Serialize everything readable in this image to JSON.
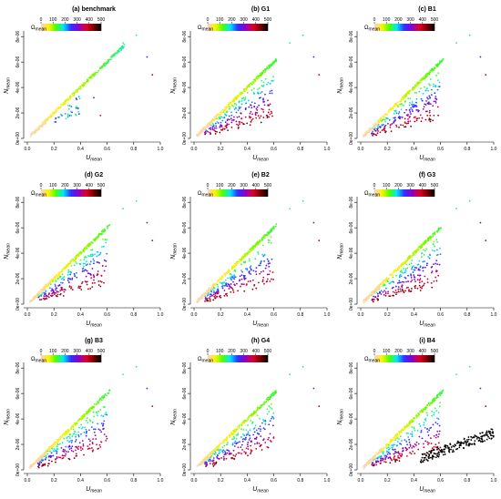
{
  "chart_data": {
    "type": "scatter",
    "layout": "3x3 small multiples",
    "xlabel": "U",
    "xlabel_subscript": "mean",
    "ylabel": "N",
    "ylabel_subscript": "mean",
    "x_ticks": [
      "0.0",
      "0.2",
      "0.4",
      "0.6",
      "0.8",
      "1.0"
    ],
    "y_ticks": [
      "0e+00",
      "2e-06",
      "4e-06",
      "6e-06",
      "8e-06"
    ],
    "xlim": [
      0.0,
      1.0
    ],
    "ylim": [
      0,
      8.3e-06
    ],
    "colorbar": {
      "label": "Ω",
      "label_subscript": "mean",
      "ticks": [
        "0",
        "100",
        "200",
        "300",
        "400",
        "500"
      ],
      "range": [
        0,
        500
      ],
      "stops": [
        "#f9d2c9",
        "#fff200",
        "#4cff00",
        "#00e5ff",
        "#2f2fff",
        "#8a00c8",
        "#e0002a",
        "#7a0000",
        "#000000"
      ]
    },
    "panels": [
      {
        "title": "(a) benchmark",
        "variant": "benchmark"
      },
      {
        "title": "(b) G1",
        "variant": "G"
      },
      {
        "title": "(c) B1",
        "variant": "B"
      },
      {
        "title": "(d) G2",
        "variant": "G"
      },
      {
        "title": "(e) B2",
        "variant": "B"
      },
      {
        "title": "(f) G3",
        "variant": "G"
      },
      {
        "title": "(g) B3",
        "variant": "B"
      },
      {
        "title": "(h) G4",
        "variant": "G"
      },
      {
        "title": "(i) B4",
        "variant": "B4"
      }
    ],
    "common_points": [
      {
        "x": 0.72,
        "y": 7.5e-06,
        "omega": 150
      },
      {
        "x": 0.82,
        "y": 8.1e-06,
        "omega": 170
      },
      {
        "x": 0.9,
        "y": 6.4e-06,
        "omega": 260
      },
      {
        "x": 0.94,
        "y": 5e-06,
        "omega": 410
      },
      {
        "x": 0.5,
        "y": 3.2e-06,
        "omega": 250
      },
      {
        "x": 0.55,
        "y": 1.8e-06,
        "omega": 350
      }
    ]
  }
}
